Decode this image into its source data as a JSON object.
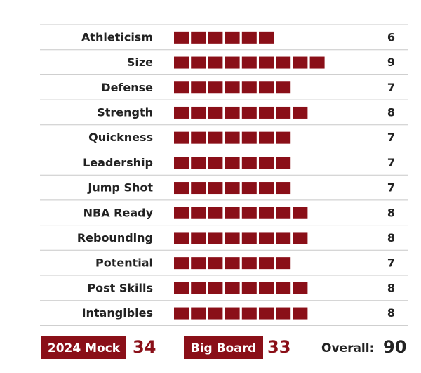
{
  "chart_data": {
    "type": "bar",
    "color": "#8a0f18",
    "categories": [
      "Athleticism",
      "Size",
      "Defense",
      "Strength",
      "Quickness",
      "Leadership",
      "Jump Shot",
      "NBA Ready",
      "Rebounding",
      "Potential",
      "Post Skills",
      "Intangibles"
    ],
    "values": [
      6,
      9,
      7,
      8,
      7,
      7,
      7,
      8,
      8,
      7,
      8,
      8
    ]
  },
  "footer": {
    "mock_label": "2024 Mock",
    "mock": 34,
    "board_label": "Big Board",
    "board": 33,
    "overall_label": "Overall:",
    "overall": 90
  }
}
